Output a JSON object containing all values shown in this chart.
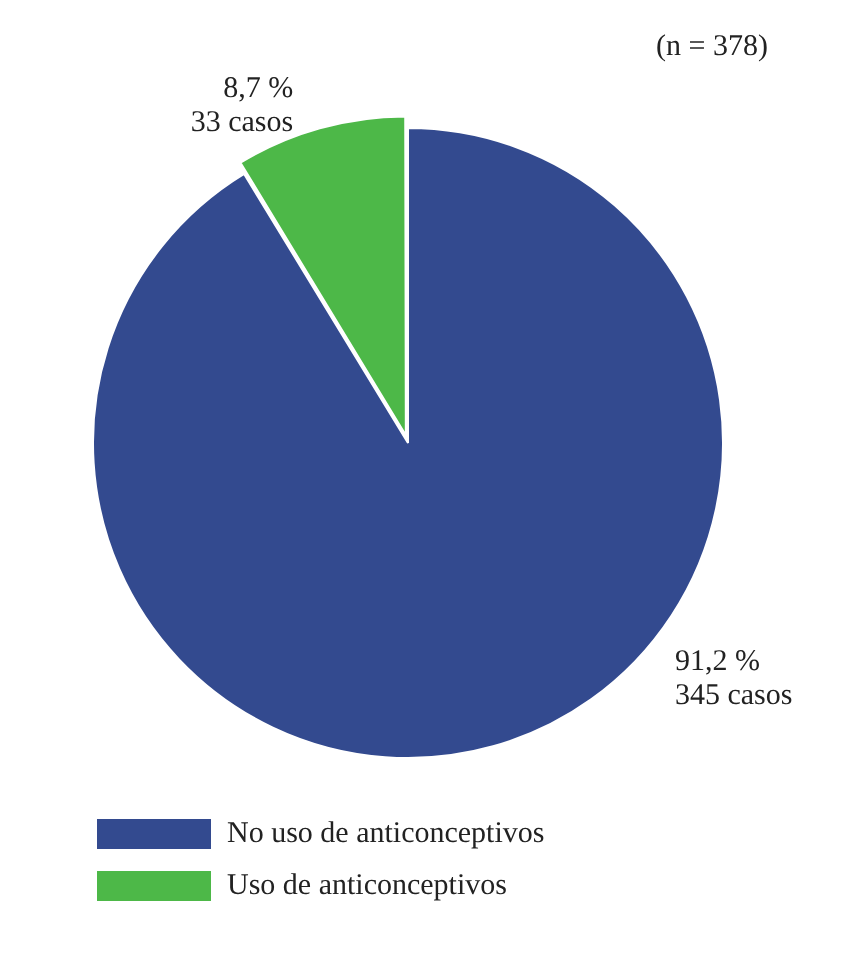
{
  "chart_data": {
    "type": "pie",
    "categories": [
      "No uso de anticonceptivos",
      "Uso de anticonceptivos"
    ],
    "values": [
      91.2,
      8.7
    ],
    "colors": [
      "#334a8f",
      "#4db848"
    ],
    "value_labels": [
      "91,2 %\n345 casos",
      "8,7 %\n33 casos"
    ],
    "annotations": [
      "(n = 378)"
    ],
    "legend": "bottom left"
  }
}
